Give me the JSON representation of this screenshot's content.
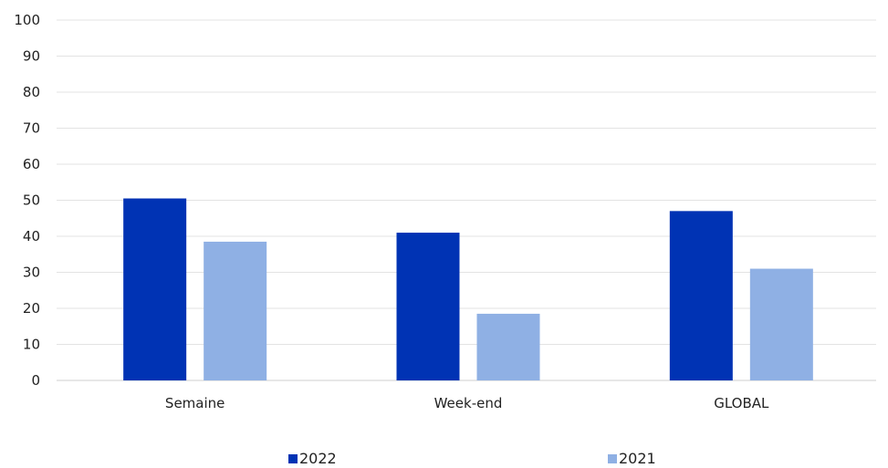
{
  "chart_data": {
    "type": "bar",
    "categories": [
      "Semaine",
      "Week-end",
      "GLOBAL"
    ],
    "series": [
      {
        "name": "2022",
        "values": [
          50.5,
          41,
          47
        ],
        "color": "#0033b4"
      },
      {
        "name": "2021",
        "values": [
          38.5,
          18.5,
          31
        ],
        "color": "#8fb0e4"
      }
    ],
    "ylim": [
      0,
      100
    ],
    "yticks": [
      0,
      10,
      20,
      30,
      40,
      50,
      60,
      70,
      80,
      90,
      100
    ],
    "grid": true,
    "legend": "bottom-center"
  }
}
